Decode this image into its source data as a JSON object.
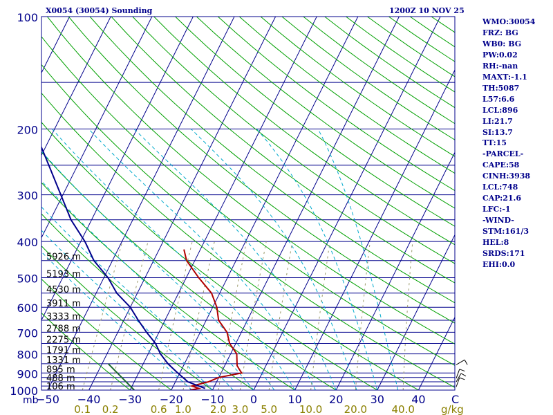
{
  "header": {
    "left_title": "X0054 (30054) Sounding",
    "right_title": "1200Z 10 NOV 25"
  },
  "params": [
    "WMO:30054",
    "FRZ: BG",
    "WB0: BG",
    "PW:0.02",
    "RH:-nan",
    "MAXT:-1.1",
    "TH:5087",
    "L57:6.6",
    "LCL:896",
    "LI:21.7",
    "SI:13.7",
    "TT:15",
    "-PARCEL-",
    "CAPE:58",
    "CINH:3938",
    "LCL:748",
    "CAP:21.6",
    "LFC:-1",
    "-WIND-",
    "STM:161/3",
    "HEL:8",
    "SRDS:171",
    "EHI:0.0"
  ],
  "colors": {
    "isobar": "#00008b",
    "isotherm": "#00008b",
    "dry_adiabat": "#00a000",
    "moist_adiabat": "#00aacc",
    "mixing_ratio": "#9a9a6a",
    "temperature": "#b00000",
    "dewpoint": "#00008b",
    "parcel": "#1a6a2a",
    "mr_labels": "#8b8000"
  },
  "chart_data": {
    "type": "skew-t",
    "xlabel": "C",
    "ylabel": "mb",
    "pressure_range": [
      100,
      1000
    ],
    "pressure_ticks": [
      100,
      200,
      300,
      400,
      500,
      600,
      700,
      800,
      900,
      1000
    ],
    "isobars_drawn": [
      100,
      150,
      200,
      250,
      300,
      350,
      400,
      450,
      500,
      550,
      600,
      650,
      700,
      750,
      800,
      850,
      900,
      925,
      950,
      975,
      1000
    ],
    "temperature_ticks": [
      -50,
      -40,
      -30,
      -20,
      -10,
      0,
      10,
      20,
      30,
      40
    ],
    "temperature_tick_labels": [
      "-50",
      "-40",
      "-30",
      "-20",
      "-10",
      "0",
      "10",
      "20",
      "30",
      "40"
    ],
    "mixing_ratio_labels": [
      "0.1",
      "0.2",
      "0.6",
      "1.0",
      "2.0",
      "3.0",
      "5.0",
      "10.0",
      "20.0",
      "40.0"
    ],
    "mixing_ratio_unit": "g/kg",
    "height_labels": [
      {
        "p": 450,
        "label": "5926 m"
      },
      {
        "p": 500,
        "label": "5193 m"
      },
      {
        "p": 550,
        "label": "4530 m"
      },
      {
        "p": 600,
        "label": "3911 m"
      },
      {
        "p": 650,
        "label": "3333 m"
      },
      {
        "p": 700,
        "label": "2788 m"
      },
      {
        "p": 750,
        "label": "2275 m"
      },
      {
        "p": 800,
        "label": "1791 m"
      },
      {
        "p": 850,
        "label": "1331 m"
      },
      {
        "p": 900,
        "label": "895 m"
      },
      {
        "p": 950,
        "label": "488 m"
      },
      {
        "p": 1000,
        "label": "106 m"
      }
    ],
    "temperature_profile": [
      {
        "p": 1000,
        "t": -15.5
      },
      {
        "p": 990,
        "t": -13.5
      },
      {
        "p": 975,
        "t": -15.5
      },
      {
        "p": 950,
        "t": -12
      },
      {
        "p": 925,
        "t": -10
      },
      {
        "p": 900,
        "t": -5
      },
      {
        "p": 880,
        "t": -6
      },
      {
        "p": 860,
        "t": -7
      },
      {
        "p": 800,
        "t": -8.5
      },
      {
        "p": 750,
        "t": -11.5
      },
      {
        "p": 700,
        "t": -13.5
      },
      {
        "p": 650,
        "t": -17
      },
      {
        "p": 600,
        "t": -19
      },
      {
        "p": 550,
        "t": -22
      },
      {
        "p": 500,
        "t": -27
      },
      {
        "p": 450,
        "t": -32
      },
      {
        "p": 420,
        "t": -34
      }
    ],
    "dewpoint_profile": [
      {
        "p": 990,
        "t": -12
      },
      {
        "p": 950,
        "t": -17
      },
      {
        "p": 900,
        "t": -20.5
      },
      {
        "p": 850,
        "t": -24
      },
      {
        "p": 800,
        "t": -27
      },
      {
        "p": 750,
        "t": -29.5
      },
      {
        "p": 700,
        "t": -33
      },
      {
        "p": 650,
        "t": -36.5
      },
      {
        "p": 600,
        "t": -40
      },
      {
        "p": 550,
        "t": -45
      },
      {
        "p": 500,
        "t": -49
      },
      {
        "p": 450,
        "t": -54.5
      },
      {
        "p": 400,
        "t": -59
      },
      {
        "p": 350,
        "t": -65
      },
      {
        "p": 300,
        "t": -70.5
      },
      {
        "p": 250,
        "t": -77
      },
      {
        "p": 200,
        "t": -85
      },
      {
        "p": 150,
        "t": -96
      },
      {
        "p": 110,
        "t": -106
      }
    ],
    "parcel_path": [
      {
        "p": 1000,
        "t": -29
      },
      {
        "p": 850,
        "t": -38.5
      }
    ],
    "wind_barbs": [
      {
        "p": 980,
        "dir": 200,
        "spd": 10
      },
      {
        "p": 950,
        "dir": 210,
        "spd": 10
      },
      {
        "p": 930,
        "dir": 200,
        "spd": 10
      },
      {
        "p": 855,
        "dir": 240,
        "spd": 10
      }
    ]
  }
}
